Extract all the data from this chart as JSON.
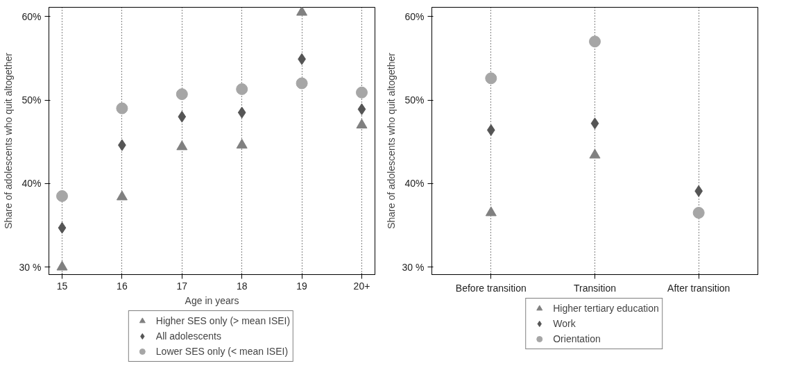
{
  "chart_data": [
    {
      "type": "scatter",
      "xlabel": "Age in years",
      "ylabel": "Share of adolescents who quit altogether",
      "categories": [
        "15",
        "16",
        "17",
        "18",
        "19",
        "20+"
      ],
      "ylim": [
        29.1,
        61.1
      ],
      "yticks": [
        {
          "value": 30,
          "label": "30 %"
        },
        {
          "value": 40,
          "label": "40%"
        },
        {
          "value": 50,
          "label": "50%"
        },
        {
          "value": 60,
          "label": "60%"
        }
      ],
      "grid": "x",
      "legend": "bottom",
      "series": [
        {
          "name": "Higher SES only (> mean ISEI)",
          "color": "#808080",
          "marker": "triangle",
          "values": [
            30.0,
            38.4,
            44.4,
            44.6,
            60.5,
            47.0
          ]
        },
        {
          "name": "All adolescents",
          "color": "#555555",
          "marker": "diamond",
          "values": [
            34.7,
            44.6,
            48.0,
            48.5,
            54.9,
            48.9
          ]
        },
        {
          "name": "Lower SES only (< mean ISEI)",
          "color": "#a6a6a6",
          "marker": "circle",
          "values": [
            38.5,
            49.0,
            50.7,
            51.3,
            52.0,
            50.9
          ]
        }
      ]
    },
    {
      "type": "scatter",
      "ylabel": "Share of adolescents who quit altogether",
      "categories": [
        "Before transition",
        "Transition",
        "After transition"
      ],
      "ylim": [
        29.1,
        61.1
      ],
      "yticks": [
        {
          "value": 30,
          "label": "30 %"
        },
        {
          "value": 40,
          "label": "40%"
        },
        {
          "value": 50,
          "label": "50%"
        },
        {
          "value": 60,
          "label": "60%"
        }
      ],
      "grid": "x",
      "legend": "bottom",
      "series": [
        {
          "name": "Higher tertiary education",
          "color": "#808080",
          "marker": "triangle",
          "values": [
            36.5,
            43.4,
            null
          ]
        },
        {
          "name": "Work",
          "color": "#555555",
          "marker": "diamond",
          "values": [
            46.4,
            47.2,
            39.1
          ]
        },
        {
          "name": "Orientation",
          "color": "#a6a6a6",
          "marker": "circle",
          "values": [
            52.6,
            57.0,
            36.5
          ]
        }
      ]
    }
  ]
}
